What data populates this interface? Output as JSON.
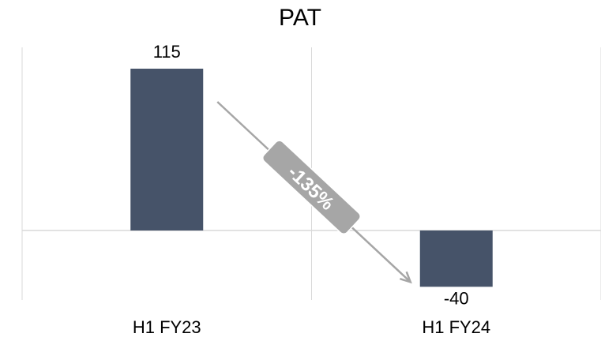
{
  "chart_data": {
    "type": "bar",
    "title": "PAT",
    "categories": [
      "H1 FY23",
      "H1 FY24"
    ],
    "values": [
      115,
      -40
    ],
    "value_labels": [
      "115",
      "-40"
    ],
    "change_annotation": "-135%",
    "ylim": [
      -48,
      130
    ],
    "grid": "vertical",
    "legend": "none"
  },
  "colors": {
    "bar": "#465369",
    "gridline": "#d9d9d9",
    "arrow": "#a6a6a6",
    "badge": "#a6a6a6"
  }
}
